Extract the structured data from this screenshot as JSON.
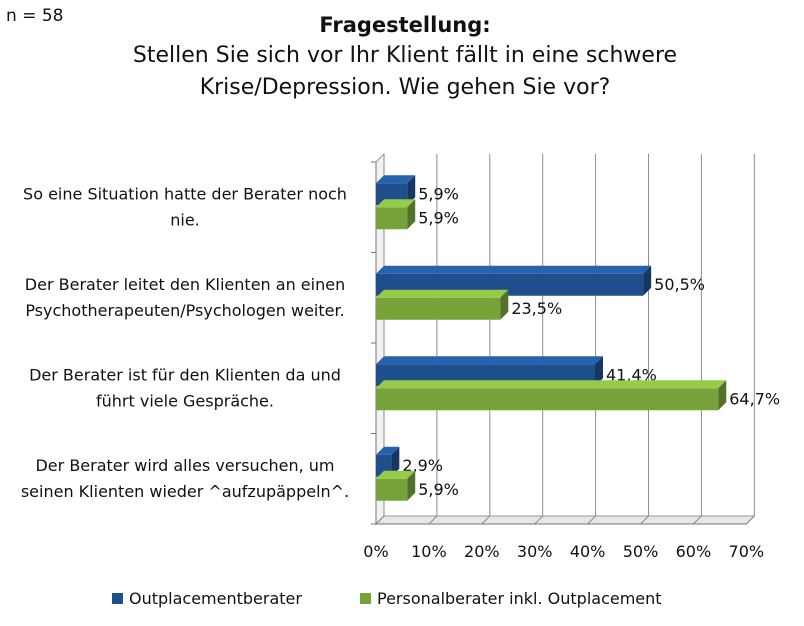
{
  "header": {
    "n": "n = 58",
    "title": "Fragestellung:",
    "subtitle_line1": "Stellen Sie sich vor Ihr Klient fällt in eine schwere",
    "subtitle_line2": "Krise/Depression. Wie gehen Sie vor?"
  },
  "chart_data": {
    "type": "bar",
    "orientation": "horizontal",
    "categories": [
      [
        "So eine Situation hatte der Berater noch",
        "nie."
      ],
      [
        "Der Berater leitet den Klienten an einen",
        "Psychotherapeuten/Psychologen weiter."
      ],
      [
        "Der Berater ist für den Klienten da und",
        "führt viele Gespräche."
      ],
      [
        "Der Berater wird alles versuchen, um",
        "seinen Klienten wieder ^aufzupäppeln^."
      ]
    ],
    "series": [
      {
        "name": "Outplacementberater",
        "values": [
          5.9,
          50.5,
          41.4,
          2.9
        ],
        "labels": [
          "5,9%",
          "50,5%",
          "41,4%",
          "2,9%"
        ],
        "color": "#1f4e8c"
      },
      {
        "name": "Personalberater inkl. Outplacement",
        "values": [
          5.9,
          23.5,
          64.7,
          5.9
        ],
        "labels": [
          "5,9%",
          "23,5%",
          "64,7%",
          "5,9%"
        ],
        "color": "#77a23a"
      }
    ],
    "xlim": [
      0,
      70
    ],
    "xticks": [
      "0%",
      "10%",
      "20%",
      "30%",
      "40%",
      "50%",
      "60%",
      "70%"
    ],
    "grid": true,
    "legend": "bottom"
  }
}
